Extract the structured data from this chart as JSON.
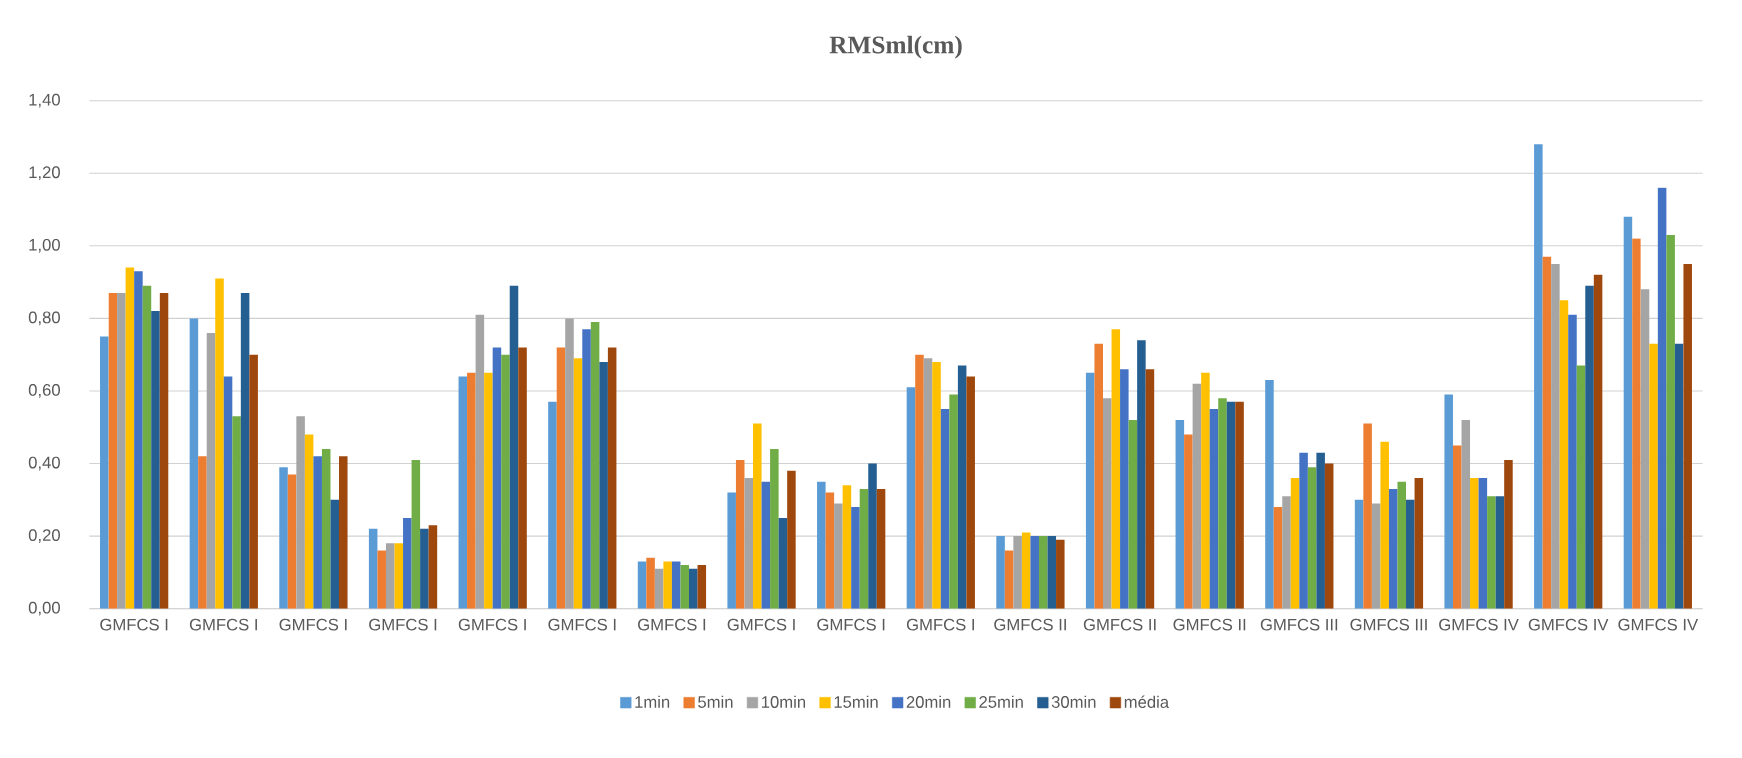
{
  "chart_data": {
    "type": "bar",
    "title": "RMSml(cm)",
    "categories": [
      "GMFCS I",
      "GMFCS I",
      "GMFCS I",
      "GMFCS I",
      "GMFCS I",
      "GMFCS I",
      "GMFCS I",
      "GMFCS I",
      "GMFCS I",
      "GMFCS I",
      "GMFCS II",
      "GMFCS II",
      "GMFCS II",
      "GMFCS III",
      "GMFCS III",
      "GMFCS IV",
      "GMFCS IV",
      "GMFCS IV"
    ],
    "series": [
      {
        "name": "1min",
        "color": "#5b9bd5",
        "values": [
          0.75,
          0.8,
          0.39,
          0.22,
          0.64,
          0.57,
          0.13,
          0.32,
          0.35,
          0.61,
          0.2,
          0.65,
          0.52,
          0.63,
          0.3,
          0.59,
          1.28,
          1.08
        ]
      },
      {
        "name": "5min",
        "color": "#ed7d31",
        "values": [
          0.87,
          0.42,
          0.37,
          0.16,
          0.65,
          0.72,
          0.14,
          0.41,
          0.32,
          0.7,
          0.16,
          0.73,
          0.48,
          0.28,
          0.51,
          0.45,
          0.97,
          1.02
        ]
      },
      {
        "name": "10min",
        "color": "#a5a5a5",
        "values": [
          0.87,
          0.76,
          0.53,
          0.18,
          0.81,
          0.8,
          0.11,
          0.36,
          0.29,
          0.69,
          0.2,
          0.58,
          0.62,
          0.31,
          0.29,
          0.52,
          0.95,
          0.88
        ]
      },
      {
        "name": "15min",
        "color": "#ffc000",
        "values": [
          0.94,
          0.91,
          0.48,
          0.18,
          0.65,
          0.69,
          0.13,
          0.51,
          0.34,
          0.68,
          0.21,
          0.77,
          0.65,
          0.36,
          0.46,
          0.36,
          0.85,
          0.73
        ]
      },
      {
        "name": "20min",
        "color": "#4472c4",
        "values": [
          0.93,
          0.64,
          0.42,
          0.25,
          0.72,
          0.77,
          0.13,
          0.35,
          0.28,
          0.55,
          0.2,
          0.66,
          0.55,
          0.43,
          0.33,
          0.36,
          0.81,
          1.16
        ]
      },
      {
        "name": "25min",
        "color": "#70ad47",
        "values": [
          0.89,
          0.53,
          0.44,
          0.41,
          0.7,
          0.79,
          0.12,
          0.44,
          0.33,
          0.59,
          0.2,
          0.52,
          0.58,
          0.39,
          0.35,
          0.31,
          0.67,
          1.03
        ]
      },
      {
        "name": "30min",
        "color": "#255e91",
        "values": [
          0.82,
          0.87,
          0.3,
          0.22,
          0.89,
          0.68,
          0.11,
          0.25,
          0.4,
          0.67,
          0.2,
          0.74,
          0.57,
          0.43,
          0.3,
          0.31,
          0.89,
          0.73
        ]
      },
      {
        "name": "média",
        "color": "#9e480e",
        "values": [
          0.87,
          0.7,
          0.42,
          0.23,
          0.72,
          0.72,
          0.12,
          0.38,
          0.33,
          0.64,
          0.19,
          0.66,
          0.57,
          0.4,
          0.36,
          0.41,
          0.92,
          0.95
        ]
      }
    ],
    "ylim": [
      0,
      1.4
    ],
    "yticks": [
      {
        "value": 0,
        "label": "0,00"
      },
      {
        "value": 0.2,
        "label": "0,20"
      },
      {
        "value": 0.4,
        "label": "0,40"
      },
      {
        "value": 0.6,
        "label": "0,60"
      },
      {
        "value": 0.8,
        "label": "0,80"
      },
      {
        "value": 1.0,
        "label": "1,00"
      },
      {
        "value": 1.2,
        "label": "1,20"
      },
      {
        "value": 1.4,
        "label": "1,40"
      }
    ],
    "grid": "y",
    "legend": "bottom"
  }
}
